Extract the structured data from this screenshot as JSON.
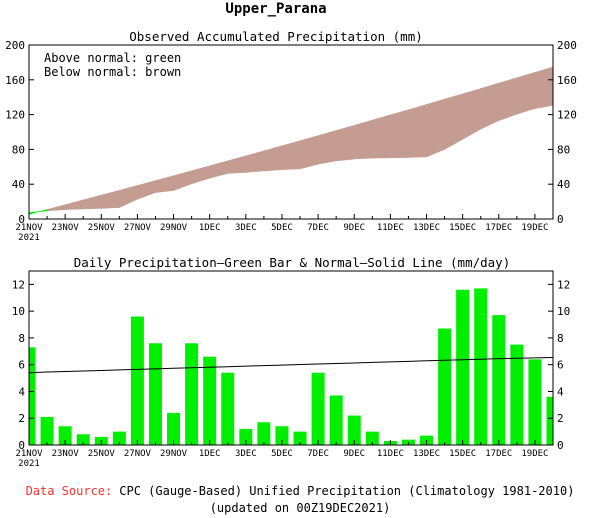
{
  "page_title": "Upper_Parana",
  "chart_data": [
    {
      "type": "area",
      "title": "Observed Accumulated Precipitation (mm)",
      "annotations": [
        "Above normal: green",
        "Below normal: brown"
      ],
      "ylim": [
        0,
        200
      ],
      "yticks": [
        0,
        40,
        80,
        120,
        160,
        200
      ],
      "ytick_labels": [
        "0",
        "40",
        "80",
        "120",
        "160",
        "200"
      ],
      "x_tick_labels": [
        "21NOV",
        "23NOV",
        "25NOV",
        "27NOV",
        "29NOV",
        "1DEC",
        "3DEC",
        "5DEC",
        "7DEC",
        "9DEC",
        "11DEC",
        "13DEC",
        "15DEC",
        "17DEC",
        "19DEC"
      ],
      "x_tick_sublabel": "2021",
      "grid": false,
      "colors": {
        "below_normal": "#c49c92",
        "above_normal": "#00ee00",
        "axis": "#000000"
      },
      "series": [
        {
          "name": "Observed",
          "values": [
            7.3,
            9.4,
            10.8,
            11.6,
            12.2,
            13.2,
            22.8,
            30.4,
            32.8,
            40.4,
            47.0,
            52.4,
            53.6,
            55.3,
            56.7,
            57.7,
            63.1,
            66.8,
            69.0,
            70.0,
            70.3,
            70.7,
            71.4,
            80.1,
            91.7,
            103.4,
            113.1,
            120.6,
            127.0,
            130.6
          ]
        },
        {
          "name": "Normal",
          "values": [
            5.4,
            10.9,
            16.4,
            21.9,
            27.4,
            32.9,
            38.5,
            44.1,
            49.7,
            55.4,
            61.1,
            66.8,
            72.5,
            78.3,
            84.1,
            89.9,
            95.8,
            101.7,
            107.6,
            113.6,
            119.6,
            125.6,
            131.6,
            137.7,
            143.8,
            149.9,
            156.1,
            162.3,
            168.5,
            174.7
          ]
        }
      ]
    },
    {
      "type": "bar",
      "title": "Daily Precipitation—Green Bar & Normal—Solid Line (mm/day)",
      "ylim": [
        0,
        13
      ],
      "yticks": [
        0,
        2,
        4,
        6,
        8,
        10,
        12
      ],
      "ytick_labels": [
        "0",
        "2",
        "4",
        "6",
        "8",
        "10",
        "12"
      ],
      "x_tick_labels": [
        "21NOV",
        "23NOV",
        "25NOV",
        "27NOV",
        "29NOV",
        "1DEC",
        "3DEC",
        "5DEC",
        "7DEC",
        "9DEC",
        "11DEC",
        "13DEC",
        "15DEC",
        "17DEC",
        "19DEC"
      ],
      "x_tick_sublabel": "2021",
      "grid": false,
      "colors": {
        "bar": "#00ee00",
        "line": "#000000"
      },
      "series": [
        {
          "name": "Daily",
          "values": [
            7.3,
            2.1,
            1.4,
            0.8,
            0.6,
            1.0,
            9.6,
            7.6,
            2.4,
            7.6,
            6.6,
            5.4,
            1.2,
            1.7,
            1.4,
            1.0,
            5.4,
            3.7,
            2.2,
            1.0,
            0.3,
            0.4,
            0.7,
            8.7,
            11.6,
            11.7,
            9.7,
            7.5,
            6.4,
            3.6
          ]
        },
        {
          "name": "Normal",
          "values": [
            5.4,
            5.45,
            5.49,
            5.53,
            5.57,
            5.61,
            5.65,
            5.69,
            5.73,
            5.77,
            5.81,
            5.85,
            5.89,
            5.93,
            5.97,
            6.01,
            6.05,
            6.09,
            6.13,
            6.17,
            6.21,
            6.25,
            6.29,
            6.33,
            6.37,
            6.41,
            6.45,
            6.48,
            6.51,
            6.54
          ]
        }
      ]
    }
  ],
  "footer": {
    "source_label": "Data Source:",
    "source_text": "CPC (Gauge-Based) Unified Precipitation (Climatology 1981-2010)",
    "source_label_color": "#ff3030",
    "updated": "(updated on 00Z19DEC2021)"
  }
}
